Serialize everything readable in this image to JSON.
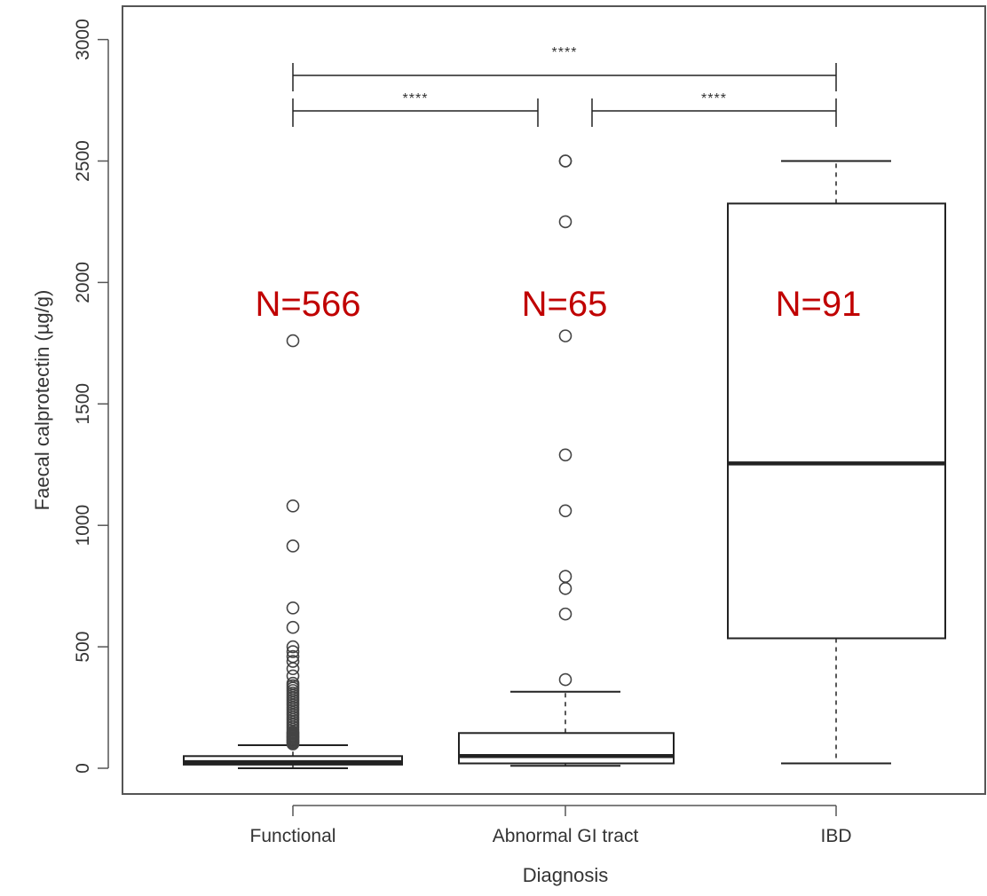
{
  "chart_data": {
    "type": "box",
    "xlabel": "Diagnosis",
    "ylabel": "Faecal calprotectin (µg/g)",
    "ylim": [
      -80,
      3080
    ],
    "yticks": [
      0,
      500,
      1000,
      1500,
      2000,
      2500,
      3000
    ],
    "ytick_labels": [
      "0",
      "500",
      "1000",
      "1500",
      "2000",
      "2500",
      "3000"
    ],
    "grid": false,
    "categories": [
      "Functional",
      "Abnormal GI tract",
      "IBD"
    ],
    "boxes": [
      {
        "category": "Functional",
        "min": 0,
        "q1": 15,
        "median": 25,
        "q3": 50,
        "max": 95,
        "outliers": [
          1760,
          1080,
          915,
          660,
          580,
          500,
          480,
          460,
          440,
          410,
          380,
          350,
          340,
          330,
          320,
          310,
          300,
          290,
          280,
          270,
          260,
          250,
          240,
          230,
          220,
          210,
          200,
          190,
          180,
          170,
          160,
          150,
          145,
          140,
          135,
          130,
          125,
          120,
          115,
          110,
          105,
          100
        ],
        "n_label": "N=566"
      },
      {
        "category": "Abnormal GI tract",
        "min": 10,
        "q1": 20,
        "median": 50,
        "q3": 145,
        "max": 315,
        "outliers": [
          2500,
          2500,
          2250,
          1780,
          1290,
          1060,
          790,
          740,
          635,
          365
        ],
        "n_label": "N=65"
      },
      {
        "category": "IBD",
        "min": 20,
        "q1": 535,
        "median": 1255,
        "q3": 2325,
        "max": 2500,
        "outliers": [],
        "n_label": "N=91"
      }
    ],
    "significance": [
      {
        "from": "Functional",
        "to": "IBD",
        "label": "****"
      },
      {
        "from": "Functional",
        "to": "Abnormal GI tract",
        "label": "****"
      },
      {
        "from": "Abnormal GI tract",
        "to": "IBD",
        "label": "****"
      }
    ],
    "colors": {
      "axis": "#555555",
      "box": "#222222",
      "outlier": "#444444",
      "n_label": "#c00000"
    }
  }
}
